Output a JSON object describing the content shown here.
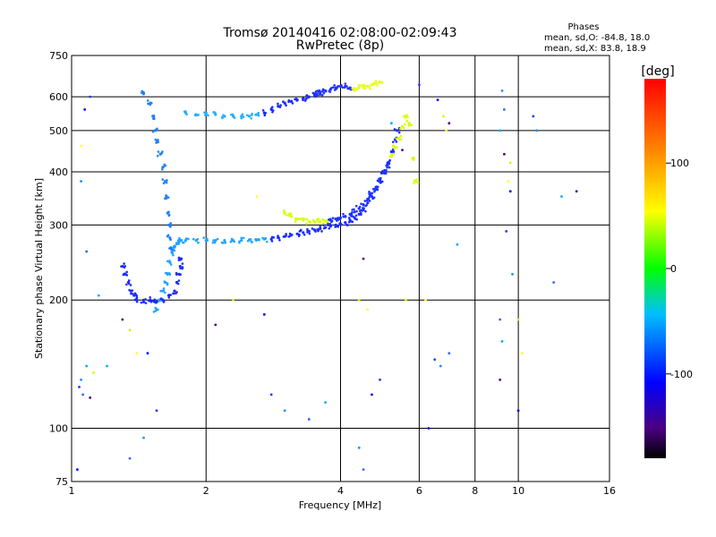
{
  "header": {
    "title_line1": "Tromsø 20140416 02:08:00-02:09:43",
    "title_line2": "RwPretec (8p)",
    "phase_title": "Phases",
    "phase_o": "mean, sd,O: -84.8, 18.0",
    "phase_x": "mean, sd,X: 83.8, 18.9"
  },
  "chart_data": {
    "type": "scatter",
    "title": "Tromsø 20140416 02:08:00-02:09:43",
    "subtitle": "RwPretec (8p)",
    "xlabel": "Frequency [MHz]",
    "ylabel": "Stationary phase Virtual Height [km]",
    "x_scale": "log",
    "y_scale": "log",
    "xlim": [
      1,
      16
    ],
    "ylim": [
      75,
      750
    ],
    "x_ticks": [
      1,
      2,
      4,
      6,
      8,
      10,
      16
    ],
    "x_tick_labels": [
      "1",
      "2",
      "4",
      "6",
      "8",
      "10",
      "16"
    ],
    "x_gridlines": [
      2,
      4,
      6,
      8,
      10
    ],
    "y_ticks": [
      75,
      100,
      200,
      300,
      400,
      500,
      600,
      750
    ],
    "y_tick_labels": [
      "75",
      "100",
      "200",
      "300",
      "400",
      "500",
      "600",
      "750"
    ],
    "y_gridlines": [
      100,
      200,
      300,
      400,
      500,
      600
    ],
    "grid": true,
    "colorbar": {
      "label": "[deg]",
      "range": [
        -180,
        180
      ],
      "ticks": [
        100,
        0,
        -100
      ],
      "tick_labels": [
        "100",
        "0",
        "-100"
      ]
    },
    "series": [
      {
        "values": [
          [
            1.55,
            190
          ],
          [
            1.57,
            200
          ],
          [
            1.6,
            210
          ],
          [
            1.62,
            220
          ],
          [
            1.64,
            230
          ],
          [
            1.66,
            245
          ],
          [
            1.68,
            258
          ],
          [
            1.7,
            266
          ],
          [
            1.72,
            272
          ],
          [
            1.74,
            275
          ],
          [
            1.76,
            276
          ],
          [
            1.8,
            276
          ],
          [
            1.9,
            276
          ],
          [
            2.0,
            276
          ],
          [
            2.1,
            276
          ],
          [
            2.2,
            276
          ],
          [
            2.3,
            276
          ],
          [
            2.4,
            276
          ],
          [
            2.5,
            277
          ],
          [
            2.6,
            277
          ],
          [
            2.7,
            278
          ],
          [
            2.8,
            278
          ],
          [
            2.9,
            280
          ],
          [
            3.0,
            282
          ],
          [
            3.1,
            284
          ],
          [
            3.2,
            286
          ],
          [
            3.3,
            288
          ],
          [
            3.4,
            290
          ],
          [
            3.5,
            292
          ],
          [
            3.6,
            294
          ],
          [
            3.7,
            296
          ],
          [
            3.8,
            298
          ],
          [
            3.9,
            300
          ],
          [
            4.0,
            302
          ],
          [
            4.1,
            304
          ],
          [
            4.2,
            308
          ],
          [
            4.3,
            312
          ],
          [
            4.4,
            318
          ],
          [
            4.5,
            326
          ],
          [
            4.6,
            338
          ],
          [
            4.7,
            350
          ],
          [
            4.8,
            364
          ],
          [
            4.9,
            380
          ],
          [
            5.0,
            398
          ],
          [
            5.1,
            420
          ],
          [
            5.2,
            446
          ],
          [
            5.3,
            476
          ],
          [
            5.35,
            500
          ]
        ]
      },
      {
        "values": [
          [
            1.45,
            610
          ],
          [
            1.5,
            580
          ],
          [
            1.52,
            540
          ],
          [
            1.54,
            500
          ],
          [
            1.56,
            470
          ],
          [
            1.58,
            440
          ],
          [
            1.6,
            410
          ],
          [
            1.62,
            380
          ],
          [
            1.63,
            350
          ],
          [
            1.64,
            320
          ],
          [
            1.65,
            300
          ],
          [
            1.66,
            280
          ],
          [
            1.67,
            265
          ],
          [
            1.8,
            550
          ],
          [
            1.9,
            545
          ],
          [
            2.0,
            545
          ],
          [
            2.1,
            545
          ],
          [
            2.2,
            540
          ],
          [
            2.3,
            540
          ],
          [
            2.4,
            540
          ],
          [
            2.5,
            540
          ],
          [
            2.6,
            545
          ],
          [
            2.7,
            550
          ],
          [
            2.8,
            560
          ],
          [
            2.9,
            570
          ],
          [
            3.0,
            580
          ],
          [
            3.1,
            585
          ],
          [
            3.2,
            590
          ],
          [
            3.3,
            595
          ],
          [
            3.4,
            600
          ],
          [
            3.5,
            605
          ],
          [
            3.6,
            610
          ]
        ]
      },
      {
        "values": [
          [
            1.3,
            240
          ],
          [
            1.32,
            230
          ],
          [
            1.34,
            220
          ],
          [
            1.36,
            210
          ],
          [
            1.38,
            205
          ],
          [
            1.4,
            200
          ],
          [
            1.45,
            198
          ],
          [
            1.5,
            200
          ],
          [
            1.55,
            198
          ],
          [
            1.6,
            200
          ],
          [
            1.65,
            205
          ],
          [
            1.7,
            210
          ],
          [
            1.72,
            220
          ],
          [
            1.74,
            230
          ],
          [
            1.75,
            240
          ],
          [
            1.76,
            250
          ]
        ]
      },
      {
        "values": [
          [
            3.0,
            320
          ],
          [
            3.1,
            315
          ],
          [
            3.2,
            310
          ],
          [
            3.3,
            308
          ],
          [
            3.4,
            306
          ],
          [
            3.5,
            305
          ],
          [
            3.6,
            306
          ],
          [
            3.7,
            307
          ],
          [
            3.8,
            308
          ],
          [
            3.9,
            310
          ],
          [
            4.0,
            312
          ],
          [
            4.1,
            314
          ],
          [
            4.2,
            318
          ],
          [
            4.3,
            322
          ],
          [
            4.4,
            328
          ],
          [
            4.5,
            335
          ],
          [
            4.6,
            345
          ],
          [
            4.7,
            356
          ],
          [
            4.8,
            368
          ],
          [
            4.9,
            382
          ],
          [
            5.0,
            398
          ],
          [
            5.1,
            415
          ],
          [
            5.2,
            435
          ],
          [
            5.3,
            455
          ],
          [
            5.4,
            480
          ],
          [
            5.5,
            510
          ],
          [
            5.6,
            540
          ],
          [
            5.7,
            520
          ],
          [
            5.8,
            430
          ],
          [
            5.9,
            380
          ]
        ]
      },
      {
        "values": [
          [
            3.5,
            610
          ],
          [
            3.6,
            615
          ],
          [
            3.7,
            620
          ],
          [
            3.8,
            625
          ],
          [
            3.9,
            630
          ],
          [
            4.0,
            635
          ],
          [
            4.1,
            635
          ],
          [
            4.2,
            630
          ],
          [
            4.3,
            628
          ],
          [
            4.4,
            630
          ],
          [
            4.5,
            632
          ],
          [
            4.6,
            635
          ],
          [
            4.7,
            640
          ],
          [
            4.8,
            645
          ],
          [
            4.9,
            650
          ]
        ]
      }
    ],
    "scattered_points": [
      [
        1.03,
        80
      ],
      [
        1.04,
        125
      ],
      [
        1.05,
        130
      ],
      [
        1.06,
        120
      ],
      [
        1.08,
        140
      ],
      [
        1.1,
        118
      ],
      [
        1.12,
        135
      ],
      [
        1.05,
        460
      ],
      [
        1.07,
        560
      ],
      [
        1.1,
        600
      ],
      [
        1.05,
        380
      ],
      [
        1.08,
        260
      ],
      [
        1.15,
        205
      ],
      [
        1.3,
        180
      ],
      [
        1.35,
        170
      ],
      [
        1.4,
        150
      ],
      [
        1.48,
        150
      ],
      [
        1.55,
        110
      ],
      [
        1.45,
        95
      ],
      [
        1.35,
        85
      ],
      [
        1.2,
        140
      ],
      [
        2.1,
        175
      ],
      [
        2.3,
        200
      ],
      [
        2.6,
        350
      ],
      [
        2.7,
        185
      ],
      [
        2.8,
        120
      ],
      [
        3.0,
        110
      ],
      [
        3.4,
        105
      ],
      [
        3.7,
        115
      ],
      [
        4.5,
        250
      ],
      [
        4.4,
        200
      ],
      [
        4.6,
        190
      ],
      [
        4.7,
        120
      ],
      [
        4.9,
        130
      ],
      [
        4.4,
        90
      ],
      [
        4.5,
        80
      ],
      [
        5.2,
        520
      ],
      [
        5.5,
        450
      ],
      [
        5.6,
        200
      ],
      [
        6.2,
        200
      ],
      [
        6.3,
        100
      ],
      [
        6.5,
        145
      ],
      [
        6.7,
        140
      ],
      [
        7.0,
        150
      ],
      [
        7.3,
        270
      ],
      [
        7.0,
        520
      ],
      [
        6.8,
        540
      ],
      [
        6.9,
        500
      ],
      [
        6.6,
        590
      ],
      [
        6.0,
        640
      ],
      [
        9.2,
        620
      ],
      [
        9.3,
        560
      ],
      [
        9.1,
        500
      ],
      [
        9.3,
        440
      ],
      [
        9.6,
        420
      ],
      [
        9.5,
        380
      ],
      [
        9.6,
        360
      ],
      [
        9.4,
        290
      ],
      [
        9.7,
        230
      ],
      [
        9.1,
        180
      ],
      [
        9.2,
        160
      ],
      [
        9.1,
        130
      ],
      [
        10.0,
        180
      ],
      [
        10.2,
        150
      ],
      [
        10.0,
        110
      ],
      [
        10.8,
        540
      ],
      [
        11.0,
        500
      ],
      [
        12.0,
        220
      ],
      [
        12.5,
        350
      ],
      [
        13.5,
        360
      ]
    ]
  }
}
